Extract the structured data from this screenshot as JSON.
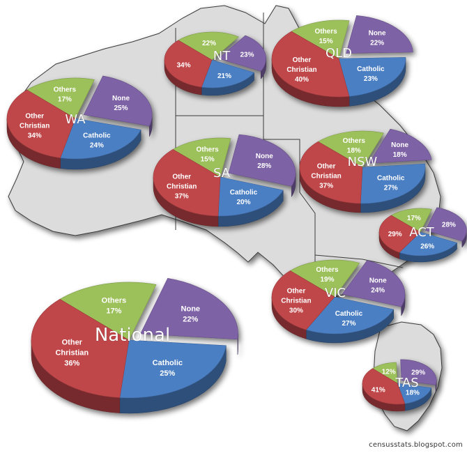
{
  "colors": {
    "catholic": "#4c7fc4",
    "other_christian": "#c0474a",
    "others": "#9cc05a",
    "none": "#7e62a6",
    "map_fill": "#dcdcdc",
    "map_stroke": "#3a3a3a",
    "slice_label": "#ffffff",
    "region_label": "#ffffff"
  },
  "credit": "censusstats.blogspot.com",
  "chart_data": [
    {
      "type": "pie",
      "region": "WA",
      "slices": [
        {
          "label": "Others",
          "value": 17
        },
        {
          "label": "None",
          "value": 25
        },
        {
          "label": "Catholic",
          "value": 24
        },
        {
          "label": "Other Christian",
          "value": 34
        }
      ]
    },
    {
      "type": "pie",
      "region": "NT",
      "slices": [
        {
          "label": "",
          "value": 22
        },
        {
          "label": "",
          "value": 23
        },
        {
          "label": "",
          "value": 21
        },
        {
          "label": "",
          "value": 34
        }
      ]
    },
    {
      "type": "pie",
      "region": "QLD",
      "slices": [
        {
          "label": "Others",
          "value": 15
        },
        {
          "label": "None",
          "value": 22
        },
        {
          "label": "Catholic",
          "value": 23
        },
        {
          "label": "Other Christian",
          "value": 40
        }
      ]
    },
    {
      "type": "pie",
      "region": "SA",
      "slices": [
        {
          "label": "Others",
          "value": 15
        },
        {
          "label": "None",
          "value": 28
        },
        {
          "label": "Catholic",
          "value": 20
        },
        {
          "label": "Other Christian",
          "value": 37
        }
      ]
    },
    {
      "type": "pie",
      "region": "NSW",
      "slices": [
        {
          "label": "Others",
          "value": 18
        },
        {
          "label": "None",
          "value": 18
        },
        {
          "label": "Catholic",
          "value": 27
        },
        {
          "label": "Other Christian",
          "value": 37
        }
      ]
    },
    {
      "type": "pie",
      "region": "ACT",
      "slices": [
        {
          "label": "",
          "value": 17
        },
        {
          "label": "",
          "value": 28
        },
        {
          "label": "",
          "value": 26
        },
        {
          "label": "",
          "value": 29
        }
      ]
    },
    {
      "type": "pie",
      "region": "VIC",
      "slices": [
        {
          "label": "Others",
          "value": 19
        },
        {
          "label": "None",
          "value": 24
        },
        {
          "label": "Catholic",
          "value": 27
        },
        {
          "label": "Other Christian",
          "value": 30
        }
      ]
    },
    {
      "type": "pie",
      "region": "TAS",
      "slices": [
        {
          "label": "",
          "value": 12
        },
        {
          "label": "",
          "value": 29
        },
        {
          "label": "",
          "value": 18
        },
        {
          "label": "",
          "value": 41
        }
      ]
    },
    {
      "type": "pie",
      "region": "National",
      "slices": [
        {
          "label": "Others",
          "value": 17
        },
        {
          "label": "None",
          "value": 22
        },
        {
          "label": "Catholic",
          "value": 25
        },
        {
          "label": "Other Christian",
          "value": 36
        }
      ]
    }
  ]
}
